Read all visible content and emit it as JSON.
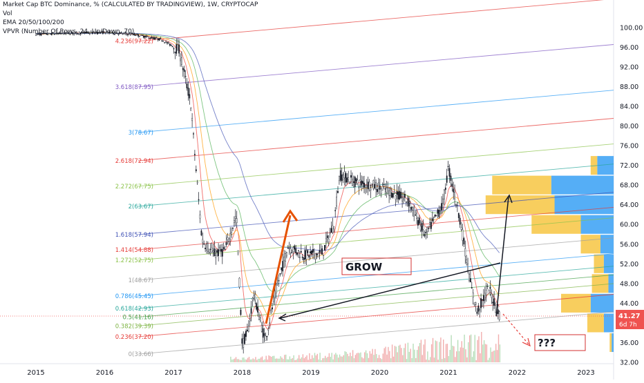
{
  "header": {
    "title": "Market Cap BTC Dominance, % (CALCULATED BY TRADINGVIEW), 1W, CRYPTOCAP",
    "vol_label": "Vol",
    "ema_label": "EMA 20/50/100/200",
    "vpvr_label": "VPVR (Number Of Rows, 24, Up/Down, 70)"
  },
  "price_tag": {
    "value": "41.27",
    "countdown": "6d 7h"
  },
  "annotations": {
    "grow_label": "GROW",
    "question_label": "???"
  },
  "colors": {
    "up_volume": "#ef9a9a",
    "down_volume": "#a5d6a7",
    "ema_fast": "#ef5350",
    "ema_mid": "#ffa726",
    "ema_slow": "#66bb6a",
    "ema_long": "#5c6bc0",
    "vpvr_up": "#f7c94c",
    "vpvr_down": "#42a5f5",
    "annotation_box": "#d32f2f"
  },
  "chart_data": {
    "type": "line",
    "title": "Market Cap BTC Dominance, % (CALCULATED BY TRADINGVIEW), 1W, CRYPTOCAP",
    "x": [
      "2015-01",
      "2015-06",
      "2016-01",
      "2016-06",
      "2016-11",
      "2017-02",
      "2017-04",
      "2017-05",
      "2017-06",
      "2017-08",
      "2017-10",
      "2017-12",
      "2018-01",
      "2018-02",
      "2018-03",
      "2018-05",
      "2018-07",
      "2018-09",
      "2018-12",
      "2019-03",
      "2019-05",
      "2019-06",
      "2019-09",
      "2019-12",
      "2020-03",
      "2020-06",
      "2020-09",
      "2020-12",
      "2021-01",
      "2021-03",
      "2021-05",
      "2021-06",
      "2021-08",
      "2021-10"
    ],
    "series": [
      {
        "name": "BTC Dominance",
        "values": [
          98.6,
          98.8,
          99.0,
          98.6,
          97.5,
          95.4,
          84.7,
          70.5,
          56.8,
          54.0,
          54.7,
          62.0,
          35.6,
          38.1,
          46.0,
          36.4,
          47.0,
          55.5,
          53.7,
          54.2,
          60.0,
          70.1,
          68.5,
          67.9,
          66.6,
          64.7,
          57.8,
          64.0,
          71.5,
          61.2,
          47.0,
          42.3,
          47.0,
          41.3
        ]
      }
    ],
    "y_axis": {
      "ticks": [
        100.0,
        96.0,
        92.0,
        88.0,
        84.0,
        80.0,
        76.0,
        72.0,
        68.0,
        64.0,
        60.0,
        56.0,
        52.0,
        48.0,
        44.0,
        40.0,
        36.0,
        32.0
      ],
      "range": [
        32.0,
        102.5
      ]
    },
    "x_axis": {
      "ticks": [
        "2015",
        "2016",
        "2017",
        "2018",
        "2019",
        "2020",
        "2021",
        "2022",
        "2023"
      ]
    },
    "fib_levels": [
      {
        "label": "0(33.66)",
        "value": 33.66,
        "color": "#9e9e9e"
      },
      {
        "label": "0.236(37.20)",
        "value": 37.2,
        "color": "#e53935"
      },
      {
        "label": "0.382(39.39)",
        "value": 39.39,
        "color": "#7cb342"
      },
      {
        "label": "0.5(41.16)",
        "value": 41.16,
        "color": "#43a047"
      },
      {
        "label": "0.618(42.93)",
        "value": 42.93,
        "color": "#26a69a"
      },
      {
        "label": "0.786(45.45)",
        "value": 45.45,
        "color": "#2196f3"
      },
      {
        "label": "1(48.67)",
        "value": 48.67,
        "color": "#9e9e9e"
      },
      {
        "label": "1.272(52.75)",
        "value": 52.75,
        "color": "#8bc34a"
      },
      {
        "label": "1.414(54.88)",
        "value": 54.88,
        "color": "#e53935"
      },
      {
        "label": "1.618(57.94)",
        "value": 57.94,
        "color": "#3f51b5"
      },
      {
        "label": "2(63.67)",
        "value": 63.67,
        "color": "#26a69a"
      },
      {
        "label": "2.272(67.75)",
        "value": 67.75,
        "color": "#8bc34a"
      },
      {
        "label": "2.618(72.94)",
        "value": 72.94,
        "color": "#e53935"
      },
      {
        "label": "3(78.67)",
        "value": 78.67,
        "color": "#2196f3"
      },
      {
        "label": "3.618(87.95)",
        "value": 87.95,
        "color": "#7e57c2"
      },
      {
        "label": "4.236(97.22)",
        "value": 97.22,
        "color": "#e53935"
      }
    ],
    "vpvr_rows": [
      {
        "value": 72.0,
        "up": 1.0,
        "down": 2.5
      },
      {
        "value": 68.0,
        "up": 9.0,
        "down": 9.5
      },
      {
        "value": 64.0,
        "up": 10.5,
        "down": 9.0
      },
      {
        "value": 60.0,
        "up": 7.5,
        "down": 5.0
      },
      {
        "value": 56.0,
        "up": 3.0,
        "down": 2.0
      },
      {
        "value": 52.0,
        "up": 1.5,
        "down": 1.5
      },
      {
        "value": 48.0,
        "up": 2.5,
        "down": 0.8
      },
      {
        "value": 44.0,
        "up": 4.5,
        "down": 3.5
      },
      {
        "value": 40.0,
        "up": 2.5,
        "down": 1.5
      },
      {
        "value": 36.0,
        "up": 0.3,
        "down": 0.3
      }
    ],
    "grid": false,
    "legend": "top-left"
  }
}
